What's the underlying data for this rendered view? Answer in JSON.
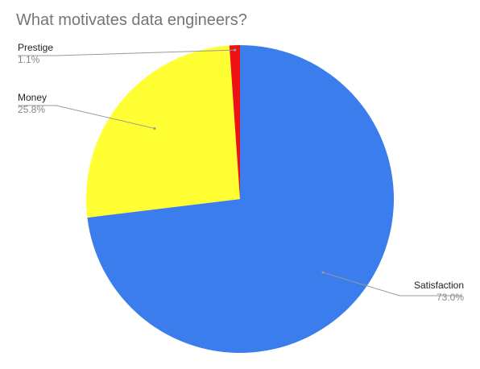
{
  "chart_data": {
    "type": "pie",
    "title": "What motivates data engineers?",
    "slices": [
      {
        "label": "Satisfaction",
        "value": 73.0,
        "display": "73.0%",
        "color": "#3c7ded"
      },
      {
        "label": "Money",
        "value": 25.8,
        "display": "25.8%",
        "color": "#ffff33"
      },
      {
        "label": "Prestige",
        "value": 1.1,
        "display": "1.1%",
        "color": "#ee1111"
      }
    ],
    "start_angle_deg": 0,
    "direction": "clockwise",
    "labels": "outside-with-leader-lines"
  }
}
